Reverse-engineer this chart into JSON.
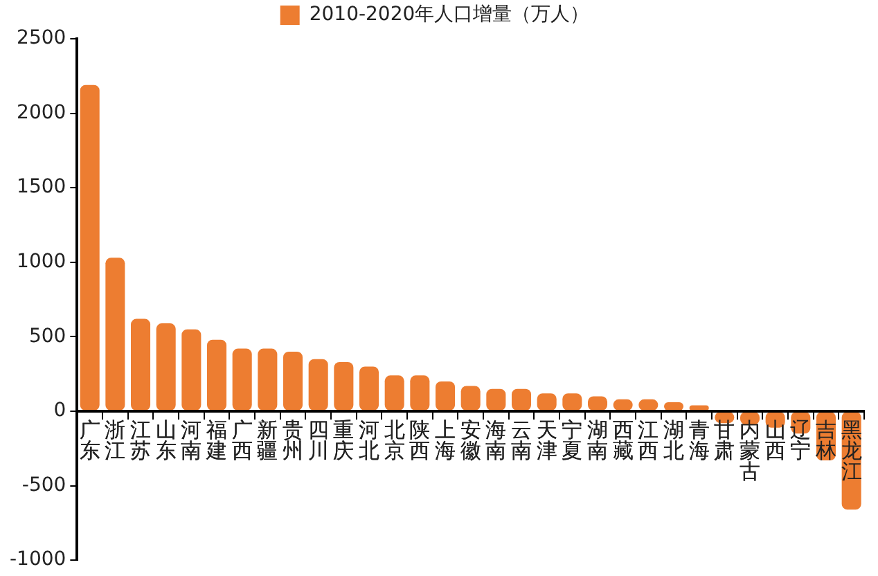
{
  "chart_data": {
    "type": "bar",
    "categories": [
      "广东",
      "浙江",
      "江苏",
      "山东",
      "河南",
      "福建",
      "广西",
      "新疆",
      "贵州",
      "四川",
      "重庆",
      "河北",
      "北京",
      "陕西",
      "上海",
      "安徽",
      "海南",
      "云南",
      "天津",
      "宁夏",
      "湖南",
      "西藏",
      "江西",
      "湖北",
      "青海",
      "甘肃",
      "内蒙古",
      "山西",
      "辽宁",
      "吉林",
      "黑龙江"
    ],
    "series": [
      {
        "name": "2010-2020年人口增量（万人）",
        "color": "#ed7d31",
        "values": [
          2190,
          1030,
          620,
          590,
          550,
          480,
          420,
          420,
          400,
          350,
          330,
          300,
          240,
          240,
          200,
          170,
          150,
          150,
          120,
          120,
          100,
          80,
          80,
          60,
          40,
          -80,
          -90,
          -110,
          -150,
          -330,
          -660
        ]
      }
    ],
    "ylim": [
      -1000,
      2500
    ],
    "yticks": [
      -1000,
      -500,
      0,
      500,
      1000,
      1500,
      2000,
      2500
    ],
    "grid": false,
    "legend": "top"
  }
}
